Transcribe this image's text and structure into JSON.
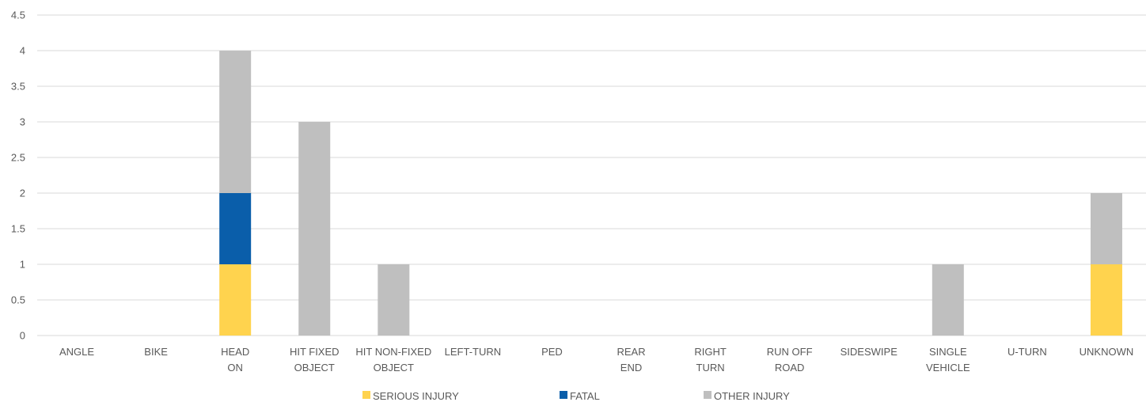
{
  "chart_data": {
    "type": "bar",
    "stacked": true,
    "categories": [
      [
        "ANGLE"
      ],
      [
        "BIKE"
      ],
      [
        "HEAD",
        "ON"
      ],
      [
        "HIT FIXED",
        "OBJECT"
      ],
      [
        "HIT NON-FIXED",
        "OBJECT"
      ],
      [
        "LEFT-TURN"
      ],
      [
        "PED"
      ],
      [
        "REAR",
        "END"
      ],
      [
        "RIGHT",
        "TURN"
      ],
      [
        "RUN OFF",
        "ROAD"
      ],
      [
        "SIDESWIPE"
      ],
      [
        "SINGLE",
        "VEHICLE"
      ],
      [
        "U-TURN"
      ],
      [
        "UNKNOWN"
      ]
    ],
    "series": [
      {
        "name": "SERIOUS INJURY",
        "color": "#FFD34E",
        "values": [
          0,
          0,
          1,
          0,
          0,
          0,
          0,
          0,
          0,
          0,
          0,
          0,
          0,
          1
        ]
      },
      {
        "name": "FATAL",
        "color": "#0A5EAA",
        "values": [
          0,
          0,
          1,
          0,
          0,
          0,
          0,
          0,
          0,
          0,
          0,
          0,
          0,
          0
        ]
      },
      {
        "name": "OTHER INJURY",
        "color": "#BFBFBF",
        "values": [
          0,
          0,
          2,
          3,
          1,
          0,
          0,
          0,
          0,
          0,
          0,
          1,
          0,
          1
        ]
      }
    ],
    "yticks": [
      "0",
      "0.5",
      "1",
      "1.5",
      "2",
      "2.5",
      "3",
      "3.5",
      "4",
      "4.5"
    ],
    "ylim": [
      0,
      4.5
    ],
    "grid": true,
    "legend": "bottom",
    "title": "",
    "xlabel": "",
    "ylabel": ""
  }
}
